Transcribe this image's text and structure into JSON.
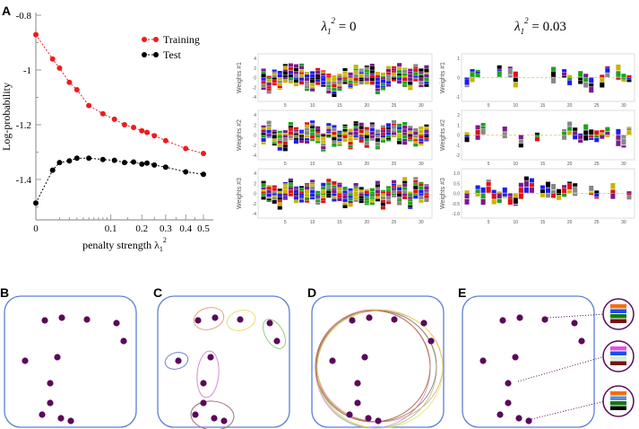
{
  "panel_labels": [
    "A",
    "B",
    "C",
    "D",
    "E"
  ],
  "chart_data": {
    "type": "line",
    "ylabel": "Log-probability",
    "xlabel": "penalty strength λ",
    "xlabel_sub": "1",
    "xlabel_sup": "2",
    "x_scale": "sqrt",
    "xlim": [
      0,
      0.5
    ],
    "ylim": [
      -1.55,
      -0.78
    ],
    "x_ticks": [
      "0",
      "0.1",
      "0.2",
      "0.3",
      "0.4",
      "0.5"
    ],
    "x_tick_values": [
      0,
      0.1,
      0.2,
      0.3,
      0.4,
      0.5
    ],
    "x_minor_ticks": [
      0.01,
      0.02,
      0.03,
      0.04,
      0.05,
      0.06,
      0.07,
      0.08,
      0.09,
      0.15,
      0.25,
      0.35,
      0.45
    ],
    "y_ticks": [
      "-0.8",
      "-1",
      "-1.2",
      "-1.4"
    ],
    "y_tick_values": [
      -0.8,
      -1.0,
      -1.2,
      -1.4
    ],
    "legend_position": "top-right",
    "x": [
      0,
      0.005,
      0.01,
      0.02,
      0.03,
      0.05,
      0.08,
      0.11,
      0.14,
      0.17,
      0.2,
      0.22,
      0.25,
      0.3,
      0.4,
      0.5
    ],
    "series": [
      {
        "name": "Training",
        "color": "#ee1c1c",
        "values": [
          -0.871,
          -0.96,
          -0.993,
          -1.045,
          -1.072,
          -1.13,
          -1.16,
          -1.18,
          -1.2,
          -1.21,
          -1.222,
          -1.228,
          -1.24,
          -1.258,
          -1.287,
          -1.305
        ]
      },
      {
        "name": "Test",
        "color": "#000000",
        "values": [
          -1.486,
          -1.366,
          -1.338,
          -1.332,
          -1.322,
          -1.322,
          -1.327,
          -1.33,
          -1.338,
          -1.336,
          -1.344,
          -1.34,
          -1.347,
          -1.355,
          -1.372,
          -1.381
        ]
      }
    ]
  },
  "logos": {
    "columns": [
      {
        "title_prefix": "λ",
        "title_sub": "1",
        "title_sup": "2",
        "title_value": " = 0"
      },
      {
        "title_prefix": "λ",
        "title_sub": "1",
        "title_sup": "2",
        "title_value": " = 0.03"
      }
    ],
    "row_labels": [
      "Weights #1",
      "Weights #2",
      "Weights #3"
    ],
    "x_ticks": [
      "5",
      "10",
      "15",
      "20",
      "25",
      "30"
    ],
    "y_ticks_left": [
      [
        "4",
        "2",
        "0",
        "-2",
        "-4"
      ],
      [
        "4",
        "2",
        "0",
        "-2",
        "-4"
      ],
      [
        "4",
        "2",
        "0",
        "-2",
        "-4"
      ]
    ],
    "y_ticks_right": [
      [
        "1",
        "0",
        "-1"
      ],
      [
        "2",
        "1",
        "0",
        "-1",
        "-2"
      ],
      [
        "1.0",
        "0.5",
        "0.0",
        "-0.5",
        "-1.0"
      ]
    ],
    "letter_colors": [
      "#000000",
      "#1d1df0",
      "#e01010",
      "#888888",
      "#7a1a8a",
      "#20a020",
      "#c8b400"
    ]
  },
  "cartoons": {
    "frame_color": "#5b7fd6",
    "dot_color": "#5a0a5a",
    "c_group_colors": [
      "#e8a080",
      "#e8e070",
      "#90d080",
      "#7080d0",
      "#d090d0",
      "#a07070"
    ],
    "d_ring_colors": [
      "#5b7fd6",
      "#90d080",
      "#e8a080",
      "#d090d0",
      "#a07070",
      "#e8e070",
      "#c07030"
    ],
    "e_bars": [
      [
        "#f07010",
        "#1d4df0",
        "#107a10",
        "#7a1010"
      ],
      [
        "#e050e0",
        "#1d4df0",
        "#d0f0d0",
        "#7a1010"
      ],
      [
        "#f07010",
        "#5b8fd6",
        "#107a10",
        "#000000"
      ]
    ]
  }
}
